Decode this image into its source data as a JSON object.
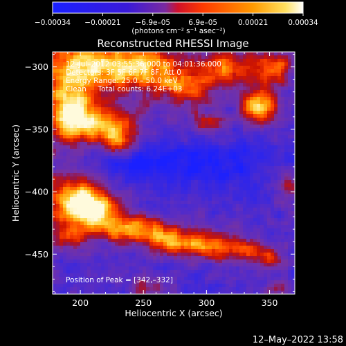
{
  "title": "Reconstructed RHESSI Image",
  "xlabel": "Heliocentric X (arcsec)",
  "ylabel": "Heliocentric Y (arcsec)",
  "footer_date": "12–May–2022 13:58",
  "colorbar": {
    "labels": [
      "−0.00034",
      "−0.00021",
      "−6.9e–05",
      "6.9e–05",
      "0.00021",
      "0.00034"
    ],
    "units": "(photons cm⁻² s⁻¹ asec⁻²)",
    "colors": [
      "#1a20ff",
      "#3a1ad8",
      "#8a28a8",
      "#ff2e00",
      "#ff8a00",
      "#ffe060",
      "#ffffff"
    ]
  },
  "info_lines": [
    "12–Jul–2012 03:55:36.000 to 04:01:36.000",
    "Detectors: 3F 5F 6F 7F 8F, Att 0",
    "Energy Range: 25.0 – 50.0 keV",
    "Clean     Total counts: 6.24E+03"
  ],
  "peak_label": "Position of Peak = [342,–332]",
  "chart_data": {
    "type": "heatmap",
    "title": "Reconstructed RHESSI Image",
    "xlabel": "Heliocentric X (arcsec)",
    "ylabel": "Heliocentric Y (arcsec)",
    "xlim": [
      178,
      370
    ],
    "ylim": [
      -482,
      -288
    ],
    "x_ticks": [
      200,
      250,
      300,
      350
    ],
    "x_tick_labels": [
      "200",
      "250",
      "300",
      "350"
    ],
    "y_ticks": [
      -300,
      -350,
      -400,
      -450
    ],
    "y_tick_labels": [
      "−300",
      "−350",
      "−400",
      "−450"
    ],
    "value_range": [
      -0.00034,
      0.00034
    ],
    "peak_position": [
      342,
      -332
    ],
    "features": [
      {
        "name": "upper bright band",
        "x_range": [
          182,
          300
        ],
        "y_range": [
          -370,
          -288
        ],
        "level": "high"
      },
      {
        "name": "upper right source",
        "x": 342,
        "y": -332,
        "level": "peak"
      },
      {
        "name": "lower bright band",
        "x_range": [
          182,
          345
        ],
        "y_range": [
          -455,
          -390
        ],
        "level": "high"
      },
      {
        "name": "central region",
        "x_range": [
          220,
          370
        ],
        "y_range": [
          -420,
          -350
        ],
        "level": "low"
      }
    ]
  }
}
